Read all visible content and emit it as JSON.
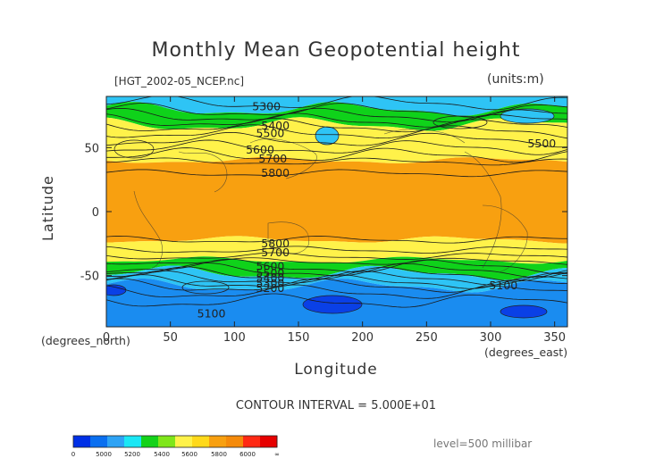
{
  "chart_data": {
    "type": "heatmap",
    "title": "Monthly Mean Geopotential height",
    "file_label": "[HGT_2002-05_NCEP.nc]",
    "units_label": "(units:m)",
    "xlabel": "Longitude",
    "ylabel": "Latitude",
    "x_unit_label": "(degrees_east)",
    "y_unit_label": "(degrees_north)",
    "xlim": [
      0,
      360
    ],
    "ylim": [
      -90,
      90
    ],
    "x_ticks": [
      0,
      50,
      100,
      150,
      200,
      250,
      300,
      350
    ],
    "y_ticks": [
      -50,
      0,
      50
    ],
    "contour_interval_text": "CONTOUR INTERVAL = 5.000E+01",
    "level_text": "level=500 millibar",
    "contour_labels": [
      {
        "text": "5300",
        "lon": 125,
        "lat": 82
      },
      {
        "text": "5400",
        "lon": 132,
        "lat": 67
      },
      {
        "text": "5500",
        "lon": 128,
        "lat": 61
      },
      {
        "text": "5600",
        "lon": 120,
        "lat": 48
      },
      {
        "text": "5700",
        "lon": 130,
        "lat": 41
      },
      {
        "text": "5800",
        "lon": 132,
        "lat": 30
      },
      {
        "text": "5500",
        "lon": 340,
        "lat": 53
      },
      {
        "text": "5800",
        "lon": 132,
        "lat": -25
      },
      {
        "text": "5700",
        "lon": 132,
        "lat": -32
      },
      {
        "text": "5600",
        "lon": 128,
        "lat": -43
      },
      {
        "text": "5500",
        "lon": 128,
        "lat": -48
      },
      {
        "text": "5400",
        "lon": 128,
        "lat": -52
      },
      {
        "text": "5300",
        "lon": 128,
        "lat": -56
      },
      {
        "text": "5200",
        "lon": 128,
        "lat": -60
      },
      {
        "text": "5100",
        "lon": 82,
        "lat": -80
      },
      {
        "text": "5100",
        "lon": 310,
        "lat": -58
      }
    ],
    "bands": [
      {
        "from_lat": 90,
        "to_lat": 80,
        "value_range": "5200-5400",
        "color": "#2ec4f5"
      },
      {
        "from_lat": 80,
        "to_lat": 68,
        "value_range": "5400-5600",
        "color": "#0fd21a"
      },
      {
        "from_lat": 68,
        "to_lat": 40,
        "value_range": "5600-5800",
        "color": "#fff24a"
      },
      {
        "from_lat": 40,
        "to_lat": -22,
        "value_range": "5800-6000",
        "color": "#f8a010"
      },
      {
        "from_lat": -22,
        "to_lat": -38,
        "value_range": "5600-5800",
        "color": "#fff24a"
      },
      {
        "from_lat": -38,
        "to_lat": -48,
        "value_range": "5400-5600",
        "color": "#0fd21a"
      },
      {
        "from_lat": -48,
        "to_lat": -58,
        "value_range": "5200-5400",
        "color": "#2ec4f5"
      },
      {
        "from_lat": -58,
        "to_lat": -90,
        "value_range": "5000-5200",
        "color": "#1a8cf0"
      }
    ],
    "colorbar": {
      "labels": [
        "0",
        "5000",
        "5200",
        "5400",
        "5600",
        "5800",
        "6000",
        "∞"
      ],
      "colors": [
        "#0030e6",
        "#0a6ff0",
        "#2ea3f5",
        "#1ae7f5",
        "#14d21a",
        "#7fe61a",
        "#fff24a",
        "#ffd91a",
        "#f8a010",
        "#f58a0a",
        "#ff2a14",
        "#e60000"
      ]
    }
  }
}
